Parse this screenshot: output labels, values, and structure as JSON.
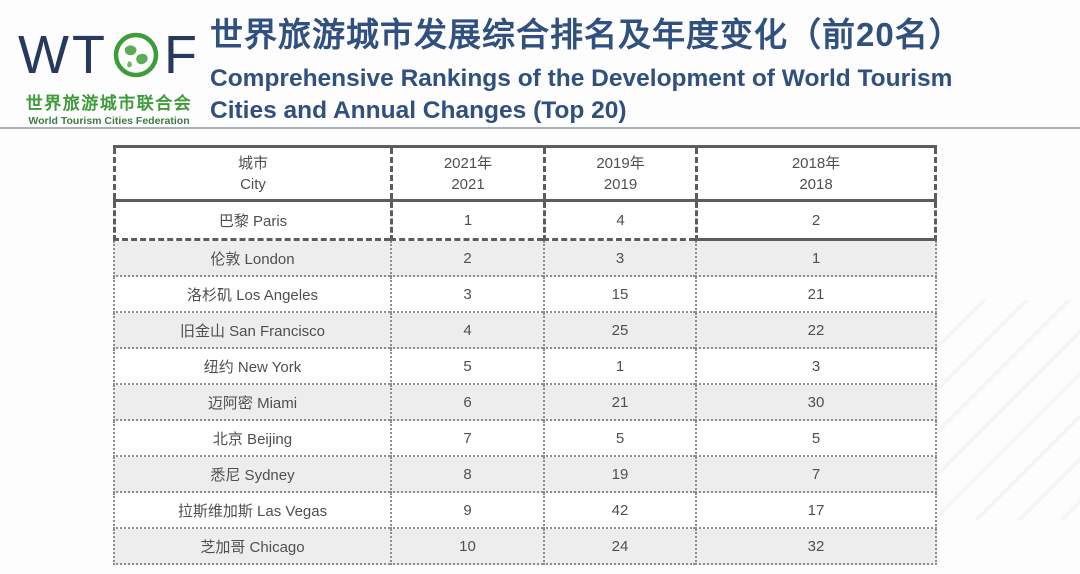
{
  "logo": {
    "letters_left": "WT",
    "letters_right": "F",
    "globe_icon": "globe-icon",
    "cn_name": "世界旅游城市联合会",
    "en_name": "World Tourism Cities Federation"
  },
  "header": {
    "title_cn": "世界旅游城市发展综合排名及年度变化（前20名）",
    "title_en_line1": "Comprehensive Rankings of the Development of World Tourism",
    "title_en_line2": "Cities and Annual Changes (Top 20)"
  },
  "colors": {
    "title_navy": "#30517f",
    "logo_navy": "#27395f",
    "logo_green": "#3f9c3a",
    "table_border": "#5d5d5d",
    "row_shade": "#ededed",
    "table_text": "#4f4f4f",
    "divider": "#aab3bd"
  },
  "chart_data": {
    "type": "table",
    "title": "世界旅游城市发展综合排名及年度变化（前20名） / Comprehensive Rankings of the Development of World Tourism Cities and Annual Changes (Top 20)",
    "columns": [
      {
        "cn": "城市",
        "en": "City"
      },
      {
        "cn": "2021年",
        "en": "2021"
      },
      {
        "cn": "2019年",
        "en": "2019"
      },
      {
        "cn": "2018年",
        "en": "2018"
      }
    ],
    "rows": [
      {
        "city_cn": "巴黎",
        "city_en": "Paris",
        "y2021": "1",
        "y2019": "4",
        "y2018": "2",
        "shaded": false
      },
      {
        "city_cn": "伦敦",
        "city_en": "London",
        "y2021": "2",
        "y2019": "3",
        "y2018": "1",
        "shaded": true
      },
      {
        "city_cn": "洛杉矶",
        "city_en": "Los Angeles",
        "y2021": "3",
        "y2019": "15",
        "y2018": "21",
        "shaded": false
      },
      {
        "city_cn": "旧金山",
        "city_en": "San Francisco",
        "y2021": "4",
        "y2019": "25",
        "y2018": "22",
        "shaded": true
      },
      {
        "city_cn": "纽约",
        "city_en": "New York",
        "y2021": "5",
        "y2019": "1",
        "y2018": "3",
        "shaded": false
      },
      {
        "city_cn": "迈阿密",
        "city_en": "Miami",
        "y2021": "6",
        "y2019": "21",
        "y2018": "30",
        "shaded": true
      },
      {
        "city_cn": "北京",
        "city_en": "Beijing",
        "y2021": "7",
        "y2019": "5",
        "y2018": "5",
        "shaded": false
      },
      {
        "city_cn": "悉尼",
        "city_en": "Sydney",
        "y2021": "8",
        "y2019": "19",
        "y2018": "7",
        "shaded": true
      },
      {
        "city_cn": "拉斯维加斯",
        "city_en": "Las Vegas",
        "y2021": "9",
        "y2019": "42",
        "y2018": "17",
        "shaded": false
      },
      {
        "city_cn": "芝加哥",
        "city_en": "Chicago",
        "y2021": "10",
        "y2019": "24",
        "y2018": "32",
        "shaded": true
      }
    ]
  }
}
